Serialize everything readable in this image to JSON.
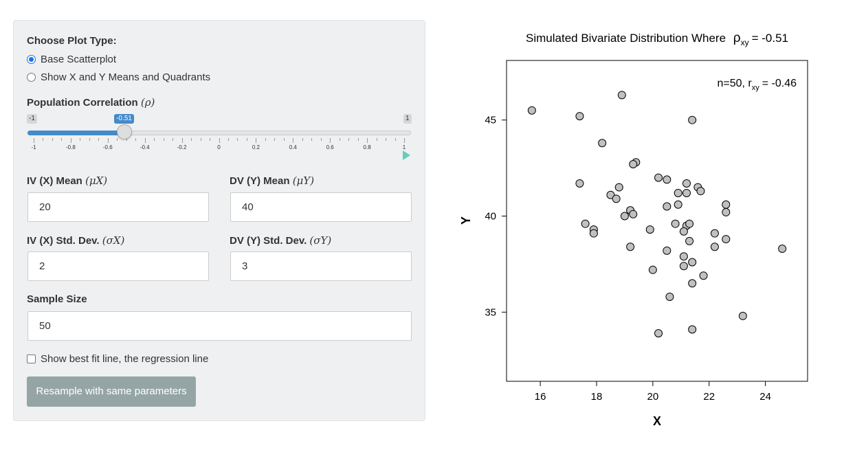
{
  "controls": {
    "plot_type_label": "Choose Plot Type:",
    "plot_options": [
      {
        "label": "Base Scatterplot",
        "selected": true
      },
      {
        "label": "Show X and Y Means and Quadrants",
        "selected": false
      }
    ],
    "correlation": {
      "label_text": "Population Correlation",
      "label_symbol": "(ρ)",
      "min_label": "-1",
      "max_label": "1",
      "value_label": "-0.51",
      "value": -0.51,
      "min": -1,
      "max": 1,
      "tick_labels": [
        "-1",
        "-0.8",
        "-0.6",
        "-0.4",
        "-0.2",
        "0",
        "0.2",
        "0.4",
        "0.6",
        "0.8",
        "1"
      ]
    },
    "iv_mean": {
      "label_text": "IV (X) Mean",
      "label_symbol": "(μX)",
      "value": "20"
    },
    "dv_mean": {
      "label_text": "DV (Y) Mean",
      "label_symbol": "(μY)",
      "value": "40"
    },
    "iv_sd": {
      "label_text": "IV (X) Std. Dev.",
      "label_symbol": "(σX)",
      "value": "2"
    },
    "dv_sd": {
      "label_text": "DV (Y) Std. Dev.",
      "label_symbol": "(σY)",
      "value": "3"
    },
    "sample_size": {
      "label": "Sample Size",
      "value": "50"
    },
    "best_fit": {
      "label": "Show best fit line, the regression line",
      "checked": false
    },
    "resample_button": "Resample with same parameters"
  },
  "chart_data": {
    "type": "scatter",
    "title_main": "Simulated Bivariate Distribution Where",
    "title_symbol": "ρ",
    "title_subscript": "xy",
    "title_value": "= -0.51",
    "annotation_main": "n=50, r",
    "annotation_subscript": "xy",
    "annotation_value": "= -0.46",
    "xlabel": "X",
    "ylabel": "Y",
    "xlim": [
      14.8,
      25.5
    ],
    "ylim": [
      31.4,
      48.1
    ],
    "xticks": [
      16,
      18,
      20,
      22,
      24
    ],
    "yticks": [
      35,
      40,
      45
    ],
    "point_color": "#c0c0c0",
    "points": [
      [
        15.7,
        45.5
      ],
      [
        17.4,
        45.2
      ],
      [
        18.9,
        46.3
      ],
      [
        21.4,
        45.0
      ],
      [
        18.2,
        43.8
      ],
      [
        19.4,
        42.8
      ],
      [
        19.3,
        42.7
      ],
      [
        17.4,
        41.7
      ],
      [
        18.8,
        41.5
      ],
      [
        18.5,
        41.1
      ],
      [
        18.7,
        40.9
      ],
      [
        20.2,
        42.0
      ],
      [
        20.5,
        41.9
      ],
      [
        21.2,
        41.7
      ],
      [
        21.6,
        41.5
      ],
      [
        21.7,
        41.3
      ],
      [
        20.9,
        41.2
      ],
      [
        21.2,
        41.2
      ],
      [
        20.9,
        40.6
      ],
      [
        20.5,
        40.5
      ],
      [
        19.2,
        40.3
      ],
      [
        19.3,
        40.1
      ],
      [
        19.0,
        40.0
      ],
      [
        22.6,
        40.6
      ],
      [
        22.6,
        40.2
      ],
      [
        17.6,
        39.6
      ],
      [
        17.9,
        39.3
      ],
      [
        17.9,
        39.1
      ],
      [
        19.9,
        39.3
      ],
      [
        20.8,
        39.6
      ],
      [
        21.2,
        39.5
      ],
      [
        21.3,
        39.6
      ],
      [
        21.1,
        39.2
      ],
      [
        22.2,
        39.1
      ],
      [
        22.6,
        38.8
      ],
      [
        21.3,
        38.7
      ],
      [
        19.2,
        38.4
      ],
      [
        20.5,
        38.2
      ],
      [
        22.2,
        38.4
      ],
      [
        24.6,
        38.3
      ],
      [
        21.1,
        37.9
      ],
      [
        21.4,
        37.6
      ],
      [
        21.1,
        37.4
      ],
      [
        20.0,
        37.2
      ],
      [
        21.8,
        36.9
      ],
      [
        21.4,
        36.5
      ],
      [
        20.6,
        35.8
      ],
      [
        23.2,
        34.8
      ],
      [
        21.4,
        34.1
      ],
      [
        20.2,
        33.9
      ]
    ]
  }
}
